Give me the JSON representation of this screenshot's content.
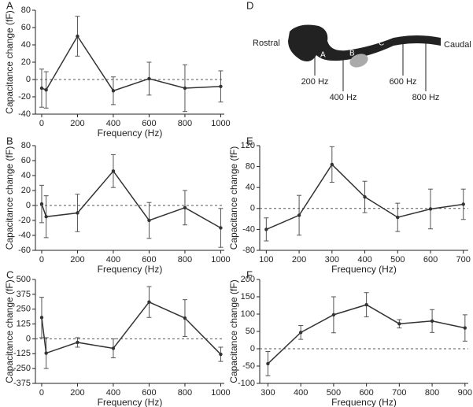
{
  "chart_data": [
    {
      "type": "line",
      "panel": "A",
      "xlabel": "Frequency (Hz)",
      "ylabel": "Capacitance change (fF)",
      "x": [
        0,
        25,
        200,
        400,
        600,
        800,
        1000
      ],
      "values": [
        -10,
        -12,
        50,
        -13,
        1,
        -10,
        -8
      ],
      "errors": [
        22,
        21,
        23,
        16,
        19,
        27,
        18
      ],
      "xlim": [
        -35,
        1020
      ],
      "ylim": [
        -40,
        80
      ],
      "xticks": [
        0,
        200,
        400,
        600,
        800,
        1000
      ],
      "yticks": [
        -40,
        -20,
        0,
        20,
        40,
        60,
        80
      ],
      "hline": 0,
      "color": "#333333"
    },
    {
      "type": "line",
      "panel": "B",
      "xlabel": "Frequency (Hz)",
      "ylabel": "Capacitance change (fF)",
      "x": [
        0,
        25,
        200,
        400,
        600,
        800,
        1000
      ],
      "values": [
        2,
        -15,
        -10,
        46,
        -20,
        -3,
        -30
      ],
      "errors": [
        25,
        28,
        25,
        22,
        24,
        23,
        26
      ],
      "xlim": [
        -35,
        1020
      ],
      "ylim": [
        -60,
        80
      ],
      "xticks": [
        0,
        200,
        400,
        600,
        800,
        1000
      ],
      "yticks": [
        -60,
        -40,
        -20,
        0,
        20,
        40,
        60,
        80
      ],
      "hline": 0,
      "color": "#333333"
    },
    {
      "type": "line",
      "panel": "C",
      "xlabel": "Frequency (Hz)",
      "ylabel": "Capacitance change (fF)",
      "x": [
        0,
        25,
        200,
        400,
        600,
        800,
        1000
      ],
      "values": [
        180,
        -120,
        -30,
        -80,
        310,
        175,
        -130
      ],
      "errors": [
        170,
        130,
        40,
        80,
        130,
        155,
        60
      ],
      "xlim": [
        -35,
        1020
      ],
      "ylim": [
        -375,
        500
      ],
      "xticks": [
        0,
        200,
        400,
        600,
        800,
        1000
      ],
      "yticks": [
        -375,
        -250,
        -125,
        0,
        125,
        250,
        375,
        500
      ],
      "hline": 0,
      "color": "#333333"
    },
    {
      "type": "line",
      "panel": "E",
      "xlabel": "Frequency (Hz)",
      "ylabel": "Capacitance change (fF)",
      "x": [
        100,
        200,
        300,
        400,
        500,
        600,
        700
      ],
      "values": [
        -40,
        -13,
        84,
        22,
        -17,
        -1,
        8
      ],
      "errors": [
        22,
        38,
        34,
        30,
        27,
        38,
        29
      ],
      "xlim": [
        80,
        715
      ],
      "ylim": [
        -80,
        120
      ],
      "xticks": [
        100,
        200,
        300,
        400,
        500,
        600,
        700
      ],
      "yticks": [
        -80,
        -40,
        0,
        40,
        80,
        120
      ],
      "hline": 0,
      "color": "#333333"
    },
    {
      "type": "line",
      "panel": "F",
      "xlabel": "Frequency (Hz)",
      "ylabel": "Capacitance change (fF)",
      "x": [
        300,
        400,
        500,
        600,
        700,
        800,
        900
      ],
      "values": [
        -43,
        47,
        98,
        127,
        72,
        80,
        60
      ],
      "errors": [
        35,
        20,
        52,
        35,
        12,
        33,
        38
      ],
      "xlim": [
        275,
        910
      ],
      "ylim": [
        -100,
        200
      ],
      "xticks": [
        300,
        400,
        500,
        600,
        700,
        800,
        900
      ],
      "yticks": [
        -100,
        -50,
        0,
        50,
        100,
        150,
        200
      ],
      "hline": 0,
      "color": "#333333"
    }
  ],
  "diagram": {
    "panel": "D",
    "left": "Rostral",
    "right": "Caudal",
    "regions": [
      "A",
      "B",
      "C"
    ],
    "markers": [
      "200 Hz",
      "400 Hz",
      "600 Hz",
      "800 Hz"
    ]
  }
}
